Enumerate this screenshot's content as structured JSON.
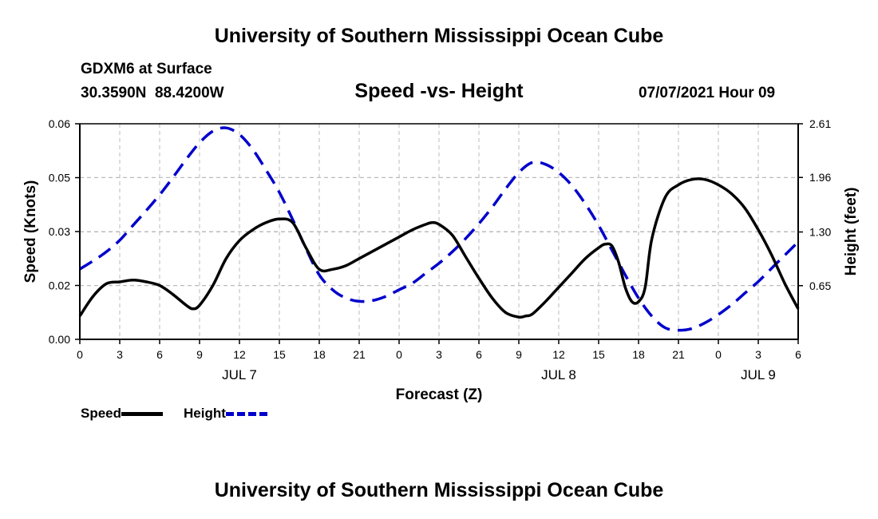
{
  "header": {
    "title": "University of Southern Mississippi Ocean Cube",
    "station": "GDXM6 at Surface",
    "coords": "30.3590N  88.4200W",
    "subtitle": "Speed -vs- Height",
    "datetime": "07/07/2021 Hour 09"
  },
  "footer": {
    "title": "University of Southern Mississippi Ocean Cube"
  },
  "legend": {
    "speed": "Speed",
    "height": "Height"
  },
  "colors": {
    "speed": "#000000",
    "height": "#0000cc",
    "grid": "#bbbbbb"
  },
  "chart_data": {
    "type": "line",
    "title": "Speed -vs- Height",
    "xlabel": "Forecast (Z)",
    "ylabel": "Speed (Knots)",
    "y2label": "Height (feet)",
    "xlim": [
      0,
      54
    ],
    "ylim": [
      0,
      0.06
    ],
    "y2lim": [
      0,
      2.61
    ],
    "x_tick_values": [
      0,
      3,
      6,
      9,
      12,
      15,
      18,
      21,
      24,
      27,
      30,
      33,
      36,
      39,
      42,
      45,
      48,
      51,
      54
    ],
    "x_tick_labels": [
      "0",
      "3",
      "6",
      "9",
      "12",
      "15",
      "18",
      "21",
      "0",
      "3",
      "6",
      "9",
      "12",
      "15",
      "18",
      "21",
      "0",
      "3",
      "6"
    ],
    "date_labels": [
      {
        "x": 12,
        "label": "JUL 7"
      },
      {
        "x": 36,
        "label": "JUL 8"
      },
      {
        "x": 51,
        "label": "JUL 9"
      }
    ],
    "y_ticks": [
      0,
      0.015,
      0.03,
      0.045,
      0.06
    ],
    "y_tick_labels": [
      "0.00",
      "0.02",
      "0.03",
      "0.05",
      "0.06"
    ],
    "y2_ticks": [
      0.65,
      1.3,
      1.96,
      2.61
    ],
    "y2_tick_labels": [
      "0.65",
      "1.30",
      "1.96",
      "2.61"
    ],
    "series": [
      {
        "name": "Speed",
        "axis": "left",
        "style": "solid",
        "x": [
          0,
          1,
          2,
          3,
          4,
          5,
          6,
          7,
          8,
          8.5,
          9,
          10,
          11,
          12,
          13,
          14,
          15,
          16,
          17,
          18,
          19,
          20,
          21,
          22,
          23,
          24,
          25,
          26,
          26.5,
          27,
          28,
          29,
          30,
          31,
          32,
          33,
          33.5,
          34,
          35,
          36,
          37,
          38,
          39,
          39.5,
          40,
          40.5,
          41,
          41.5,
          42,
          42.5,
          43,
          44,
          45,
          46,
          47,
          48,
          49,
          50,
          51,
          52,
          53,
          54
        ],
        "values": [
          0.0065,
          0.012,
          0.0155,
          0.016,
          0.0165,
          0.016,
          0.015,
          0.0125,
          0.0095,
          0.0085,
          0.0095,
          0.015,
          0.0225,
          0.0275,
          0.0305,
          0.0325,
          0.0335,
          0.0325,
          0.0255,
          0.0195,
          0.0195,
          0.0205,
          0.0225,
          0.0245,
          0.0265,
          0.0285,
          0.0305,
          0.032,
          0.0325,
          0.032,
          0.029,
          0.023,
          0.017,
          0.0115,
          0.0075,
          0.0062,
          0.0065,
          0.007,
          0.0105,
          0.0145,
          0.0185,
          0.0225,
          0.0255,
          0.0265,
          0.026,
          0.0215,
          0.0145,
          0.0105,
          0.0105,
          0.0145,
          0.028,
          0.0395,
          0.043,
          0.0445,
          0.0445,
          0.043,
          0.0405,
          0.0365,
          0.0305,
          0.0235,
          0.0155,
          0.0085
        ]
      },
      {
        "name": "Height",
        "axis": "right",
        "style": "dashed",
        "x": [
          0,
          1,
          2,
          3,
          4,
          5,
          6,
          7,
          8,
          9,
          10,
          11,
          12,
          13,
          14,
          15,
          16,
          17,
          18,
          19,
          20,
          21,
          22,
          23,
          24,
          25,
          26,
          27,
          28,
          29,
          30,
          31,
          32,
          33,
          34,
          35,
          36,
          37,
          38,
          39,
          40,
          41,
          42,
          43,
          44,
          45,
          46,
          47,
          48,
          49,
          50,
          51,
          52,
          53,
          54
        ],
        "values": [
          0.85,
          0.95,
          1.06,
          1.2,
          1.38,
          1.56,
          1.75,
          1.96,
          2.18,
          2.38,
          2.52,
          2.56,
          2.48,
          2.3,
          2.05,
          1.78,
          1.45,
          1.1,
          0.78,
          0.6,
          0.5,
          0.46,
          0.47,
          0.52,
          0.6,
          0.68,
          0.8,
          0.92,
          1.06,
          1.22,
          1.4,
          1.6,
          1.82,
          2.02,
          2.14,
          2.12,
          2.02,
          1.86,
          1.64,
          1.38,
          1.08,
          0.78,
          0.5,
          0.28,
          0.14,
          0.11,
          0.13,
          0.2,
          0.3,
          0.42,
          0.56,
          0.7,
          0.86,
          1.02,
          1.18
        ]
      }
    ]
  }
}
